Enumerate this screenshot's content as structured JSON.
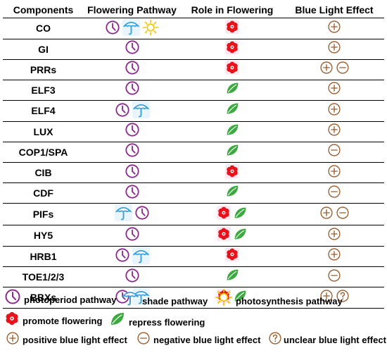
{
  "headers": [
    "Components",
    "Flowering Pathway",
    "Role in Flowering",
    "Blue Light Effect"
  ],
  "rows": [
    {
      "name": "CO",
      "pathway": [
        "clock-icon",
        "umbrella-icon",
        "sun-icon"
      ],
      "role": [
        "flower-icon"
      ],
      "effect": [
        "plus-icon"
      ]
    },
    {
      "name": "GI",
      "pathway": [
        "clock-icon"
      ],
      "role": [
        "flower-icon"
      ],
      "effect": [
        "plus-icon"
      ]
    },
    {
      "name": "PRRs",
      "pathway": [
        "clock-icon"
      ],
      "role": [
        "flower-icon"
      ],
      "effect": [
        "plus-icon",
        "minus-icon"
      ]
    },
    {
      "name": "ELF3",
      "pathway": [
        "clock-icon"
      ],
      "role": [
        "leaf-icon"
      ],
      "effect": [
        "plus-icon"
      ]
    },
    {
      "name": "ELF4",
      "pathway": [
        "clock-icon",
        "umbrella-icon"
      ],
      "role": [
        "leaf-icon"
      ],
      "effect": [
        "plus-icon"
      ]
    },
    {
      "name": "LUX",
      "pathway": [
        "clock-icon"
      ],
      "role": [
        "leaf-icon"
      ],
      "effect": [
        "plus-icon"
      ]
    },
    {
      "name": "COP1/SPA",
      "pathway": [
        "clock-icon"
      ],
      "role": [
        "leaf-icon"
      ],
      "effect": [
        "minus-icon"
      ]
    },
    {
      "name": "CIB",
      "pathway": [
        "clock-icon"
      ],
      "role": [
        "flower-icon"
      ],
      "effect": [
        "plus-icon"
      ]
    },
    {
      "name": "CDF",
      "pathway": [
        "clock-icon"
      ],
      "role": [
        "leaf-icon"
      ],
      "effect": [
        "minus-icon"
      ]
    },
    {
      "name": "PIFs",
      "pathway": [
        "umbrella-icon",
        "clock-icon"
      ],
      "role": [
        "flower-icon",
        "leaf-icon"
      ],
      "effect": [
        "plus-icon",
        "minus-icon"
      ]
    },
    {
      "name": "HY5",
      "pathway": [
        "clock-icon"
      ],
      "role": [
        "flower-icon",
        "leaf-icon"
      ],
      "effect": [
        "plus-icon"
      ]
    },
    {
      "name": "HRB1",
      "pathway": [
        "clock-icon",
        "umbrella-icon"
      ],
      "role": [
        "flower-icon"
      ],
      "effect": [
        "plus-icon"
      ]
    },
    {
      "name": "TOE1/2/3",
      "pathway": [
        "clock-icon"
      ],
      "role": [
        "leaf-icon"
      ],
      "effect": [
        "minus-icon"
      ]
    },
    {
      "name": "BBXs",
      "pathway": [
        "clock-icon",
        "umbrella-icon"
      ],
      "role": [
        "flower-icon",
        "leaf-icon"
      ],
      "effect": [
        "plus-icon",
        "question-icon"
      ]
    }
  ],
  "legend": {
    "photoperiod": "photoperiod pathway",
    "shade": "shade pathway",
    "photosynthesis": "photosynthesis pathway",
    "promote": "promote flowering",
    "repress": "repress flowering",
    "positive": "positive blue light effect",
    "negative": "negative blue light effect",
    "unclear": "unclear blue light effect"
  },
  "colors": {
    "clock": "#8B2A8F",
    "umbrella": "#3A9FD8",
    "sun": "#F2C200",
    "flower": "#E8121B",
    "leaf": "#3BAA3F",
    "effect": "#9A5A2A"
  }
}
